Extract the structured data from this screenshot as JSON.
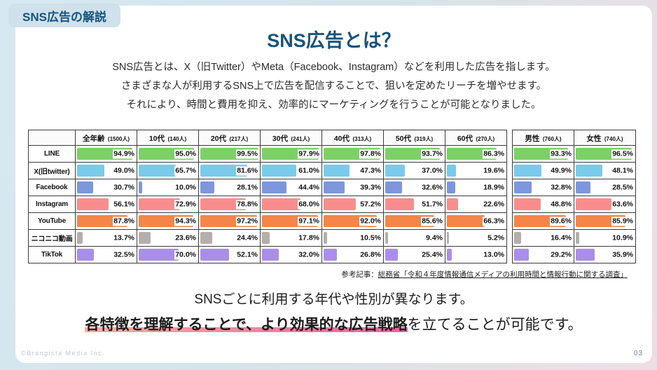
{
  "theme": {
    "accent": "#15537e",
    "tag_bg": "#cfe1eb",
    "bg_from": "#d6e8f1",
    "bg_to": "#eedee3",
    "highlight_from": "#f9aca6",
    "highlight_to": "#f45d9e"
  },
  "page": {
    "tag": "SNS広告の解説",
    "title": "SNS広告とは？",
    "intro_lines": [
      "SNS広告とは、X（旧Twitter）やMeta（Facebook、Instagram）などを利用した広告を指します。",
      "さまざまな人が利用するSNS上で広告を配信することで、狙いを定めたリーチを増やせます。",
      "それにより、時間と費用を抑え、効率的にマーケティングを行うことが可能となりました。"
    ],
    "reference": {
      "prefix": "参考記事：",
      "link": "総務省「令和４年度情報通信メディアの利用時間と情報行動に関する調査」"
    },
    "conclusion": {
      "line1": "SNSごとに利用する年代や性別が異なります。",
      "line2_highlight": "各特徴を理解することで、より効果的な広告戦略",
      "line2_rest": "を立てることが可能です。"
    },
    "footer": {
      "copyright": "©Brangista Media Inc.",
      "page_number": "03"
    }
  },
  "chart_data": {
    "type": "table",
    "description": "SNS利用率(%)の横棒グラフ付きテーブル。棒は0〜100%スケール。",
    "age_columns": [
      {
        "label": "全年齢",
        "count": "(1500人)"
      },
      {
        "label": "10代",
        "count": "(140人)"
      },
      {
        "label": "20代",
        "count": "(217人)"
      },
      {
        "label": "30代",
        "count": "(241人)"
      },
      {
        "label": "40代",
        "count": "(313人)"
      },
      {
        "label": "50代",
        "count": "(319人)"
      },
      {
        "label": "60代",
        "count": "(270人)"
      }
    ],
    "gender_columns": [
      {
        "label": "男性",
        "count": "(760人)"
      },
      {
        "label": "女性",
        "count": "(740人)"
      }
    ],
    "value_unit": "%",
    "bar_scale": [
      0,
      100
    ],
    "rows": [
      {
        "label": "LINE",
        "color": "#7cd166",
        "age_values": [
          94.9,
          95.0,
          99.5,
          97.9,
          97.8,
          93.7,
          86.3
        ],
        "gender_values": [
          93.3,
          96.5
        ]
      },
      {
        "label": "X(旧twitter)",
        "color": "#79cbe9",
        "age_values": [
          49.0,
          65.7,
          81.6,
          61.0,
          47.3,
          37.0,
          19.6
        ],
        "gender_values": [
          49.9,
          48.1
        ]
      },
      {
        "label": "Facebook",
        "color": "#7e96dc",
        "age_values": [
          30.7,
          10.0,
          28.1,
          44.4,
          39.3,
          32.6,
          18.9
        ],
        "gender_values": [
          32.8,
          28.5
        ]
      },
      {
        "label": "Instagram",
        "color": "#f98d8d",
        "age_values": [
          56.1,
          72.9,
          78.8,
          68.0,
          57.2,
          51.7,
          22.6
        ],
        "gender_values": [
          48.8,
          63.6
        ]
      },
      {
        "label": "YouTube",
        "color": "#f58549",
        "age_values": [
          87.8,
          94.3,
          97.2,
          97.1,
          92.0,
          85.6,
          66.3
        ],
        "gender_values": [
          89.6,
          85.9
        ]
      },
      {
        "label": "ニコニコ動画",
        "color": "#b5afac",
        "age_values": [
          13.7,
          23.6,
          24.4,
          17.8,
          10.5,
          9.4,
          5.2
        ],
        "gender_values": [
          16.4,
          10.9
        ]
      },
      {
        "label": "TikTok",
        "color": "#a98ee8",
        "age_values": [
          32.5,
          70.0,
          52.1,
          32.0,
          26.8,
          25.4,
          13.0
        ],
        "gender_values": [
          29.2,
          35.9
        ]
      }
    ]
  }
}
